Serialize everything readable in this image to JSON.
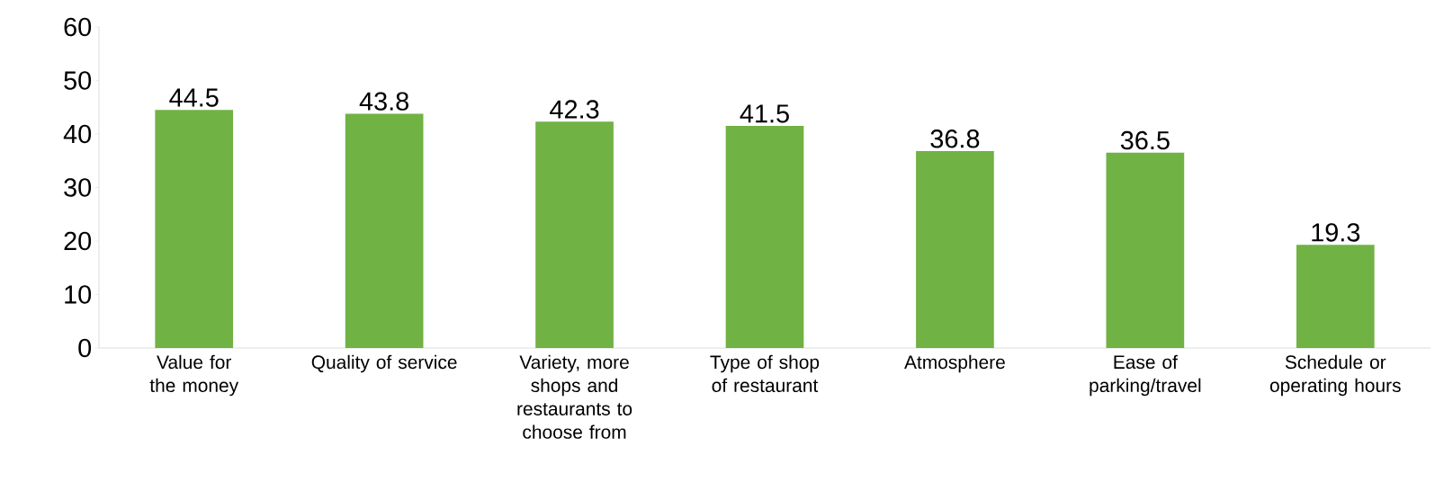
{
  "chart_data": {
    "type": "bar",
    "categories": [
      "Value for the money",
      "Quality of service",
      "Variety, more shops and restaurants to choose from",
      "Type of shop of restaurant",
      "Atmosphere",
      "Ease of parking/travel",
      "Schedule or operating hours"
    ],
    "values": [
      44.5,
      43.8,
      42.3,
      41.5,
      36.8,
      36.5,
      19.3
    ],
    "color": "#70b244",
    "ylim": [
      0,
      60
    ],
    "yticks": [
      0,
      10,
      20,
      30,
      40,
      50,
      60
    ],
    "data_labels": true
  }
}
